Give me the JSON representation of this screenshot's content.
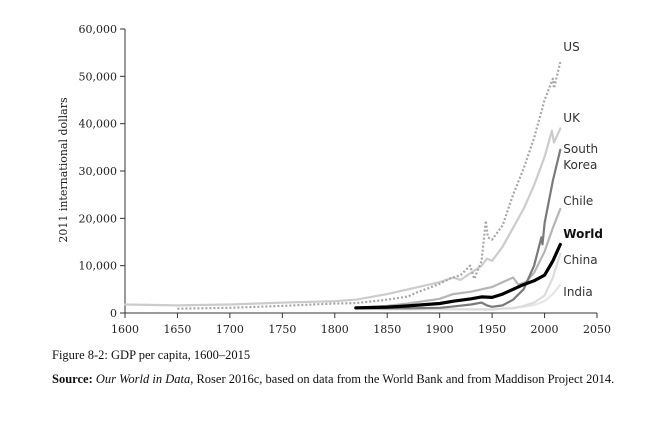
{
  "figure_title": "Figure 8-2: GDP per capita, 1600–2015",
  "source": {
    "label": "Source:",
    "work": "Our World in Data",
    "rest": ", Roser 2016c, based on data from the World Bank and from Maddison Project 2014."
  },
  "chart_data": {
    "type": "line",
    "ylabel": "2011 international dollars",
    "xlabel": "",
    "xlim": [
      1600,
      2050
    ],
    "ylim": [
      0,
      60000
    ],
    "x_ticks": [
      1600,
      1650,
      1700,
      1750,
      1800,
      1850,
      1900,
      1950,
      2000,
      2050
    ],
    "y_ticks": [
      0,
      10000,
      20000,
      30000,
      40000,
      50000,
      60000
    ],
    "y_tick_labels": [
      "0",
      "10,000",
      "20,000",
      "30,000",
      "40,000",
      "50,000",
      "60,000"
    ],
    "grid": false,
    "series": [
      {
        "name": "US",
        "color": "#a6a6a6",
        "style": "dotted",
        "points": [
          [
            1650,
            900
          ],
          [
            1700,
            1100
          ],
          [
            1750,
            1500
          ],
          [
            1800,
            2000
          ],
          [
            1820,
            2100
          ],
          [
            1850,
            2800
          ],
          [
            1870,
            3500
          ],
          [
            1880,
            4500
          ],
          [
            1890,
            5300
          ],
          [
            1900,
            6200
          ],
          [
            1910,
            7300
          ],
          [
            1920,
            8000
          ],
          [
            1929,
            10000
          ],
          [
            1933,
            7200
          ],
          [
            1940,
            11000
          ],
          [
            1944,
            19500
          ],
          [
            1946,
            16000
          ],
          [
            1950,
            15500
          ],
          [
            1960,
            18500
          ],
          [
            1970,
            25000
          ],
          [
            1980,
            30500
          ],
          [
            1990,
            37000
          ],
          [
            2000,
            45000
          ],
          [
            2008,
            49500
          ],
          [
            2009,
            47500
          ],
          [
            2015,
            53000
          ]
        ]
      },
      {
        "name": "UK",
        "color": "#cccccc",
        "style": "solid",
        "points": [
          [
            1600,
            1800
          ],
          [
            1650,
            1600
          ],
          [
            1700,
            1800
          ],
          [
            1750,
            2200
          ],
          [
            1800,
            2500
          ],
          [
            1820,
            2800
          ],
          [
            1850,
            4000
          ],
          [
            1870,
            5000
          ],
          [
            1900,
            6500
          ],
          [
            1913,
            7500
          ],
          [
            1920,
            7000
          ],
          [
            1940,
            10000
          ],
          [
            1945,
            11500
          ],
          [
            1950,
            11000
          ],
          [
            1960,
            14000
          ],
          [
            1970,
            18000
          ],
          [
            1980,
            22000
          ],
          [
            1990,
            27000
          ],
          [
            2000,
            33000
          ],
          [
            2007,
            38500
          ],
          [
            2009,
            36000
          ],
          [
            2015,
            39000
          ]
        ]
      },
      {
        "name": "South Korea",
        "color": "#7a7a7a",
        "style": "solid",
        "points": [
          [
            1820,
            1000
          ],
          [
            1870,
            1000
          ],
          [
            1900,
            1100
          ],
          [
            1910,
            1300
          ],
          [
            1930,
            1800
          ],
          [
            1940,
            2200
          ],
          [
            1945,
            1600
          ],
          [
            1950,
            1300
          ],
          [
            1960,
            1600
          ],
          [
            1970,
            2800
          ],
          [
            1980,
            5000
          ],
          [
            1990,
            10000
          ],
          [
            1997,
            16000
          ],
          [
            1998,
            14500
          ],
          [
            2000,
            19000
          ],
          [
            2008,
            28000
          ],
          [
            2015,
            34500
          ]
        ]
      },
      {
        "name": "Chile",
        "color": "#b5b5b5",
        "style": "solid",
        "points": [
          [
            1820,
            1100
          ],
          [
            1850,
            1500
          ],
          [
            1870,
            2000
          ],
          [
            1900,
            3000
          ],
          [
            1913,
            4000
          ],
          [
            1930,
            4500
          ],
          [
            1940,
            5000
          ],
          [
            1950,
            5500
          ],
          [
            1960,
            6500
          ],
          [
            1970,
            7500
          ],
          [
            1975,
            6000
          ],
          [
            1982,
            6500
          ],
          [
            1990,
            8500
          ],
          [
            2000,
            13000
          ],
          [
            2008,
            18000
          ],
          [
            2015,
            22000
          ]
        ]
      },
      {
        "name": "World",
        "color": "#000000",
        "style": "solid",
        "points": [
          [
            1820,
            1100
          ],
          [
            1850,
            1250
          ],
          [
            1870,
            1500
          ],
          [
            1900,
            2000
          ],
          [
            1913,
            2500
          ],
          [
            1930,
            3000
          ],
          [
            1940,
            3400
          ],
          [
            1950,
            3300
          ],
          [
            1960,
            4000
          ],
          [
            1970,
            5000
          ],
          [
            1980,
            6000
          ],
          [
            1990,
            6800
          ],
          [
            2000,
            8000
          ],
          [
            2008,
            11000
          ],
          [
            2015,
            14500
          ]
        ]
      },
      {
        "name": "China",
        "color": "#dcdcdc",
        "style": "solid",
        "points": [
          [
            1820,
            900
          ],
          [
            1870,
            800
          ],
          [
            1900,
            800
          ],
          [
            1950,
            700
          ],
          [
            1960,
            900
          ],
          [
            1970,
            1000
          ],
          [
            1980,
            1500
          ],
          [
            1990,
            2200
          ],
          [
            2000,
            3700
          ],
          [
            2008,
            7500
          ],
          [
            2015,
            12500
          ]
        ]
      },
      {
        "name": "India",
        "color": "#e6e6e6",
        "style": "solid",
        "points": [
          [
            1820,
            800
          ],
          [
            1870,
            750
          ],
          [
            1900,
            800
          ],
          [
            1950,
            800
          ],
          [
            1970,
            1100
          ],
          [
            1980,
            1300
          ],
          [
            1990,
            1700
          ],
          [
            2000,
            2500
          ],
          [
            2008,
            4000
          ],
          [
            2015,
            6000
          ]
        ]
      }
    ],
    "label_lines": [
      [
        "US"
      ],
      [
        "UK"
      ],
      [
        "South",
        "Korea"
      ],
      [
        "Chile"
      ],
      [
        "World"
      ],
      [
        "China"
      ],
      [
        "India"
      ]
    ]
  }
}
